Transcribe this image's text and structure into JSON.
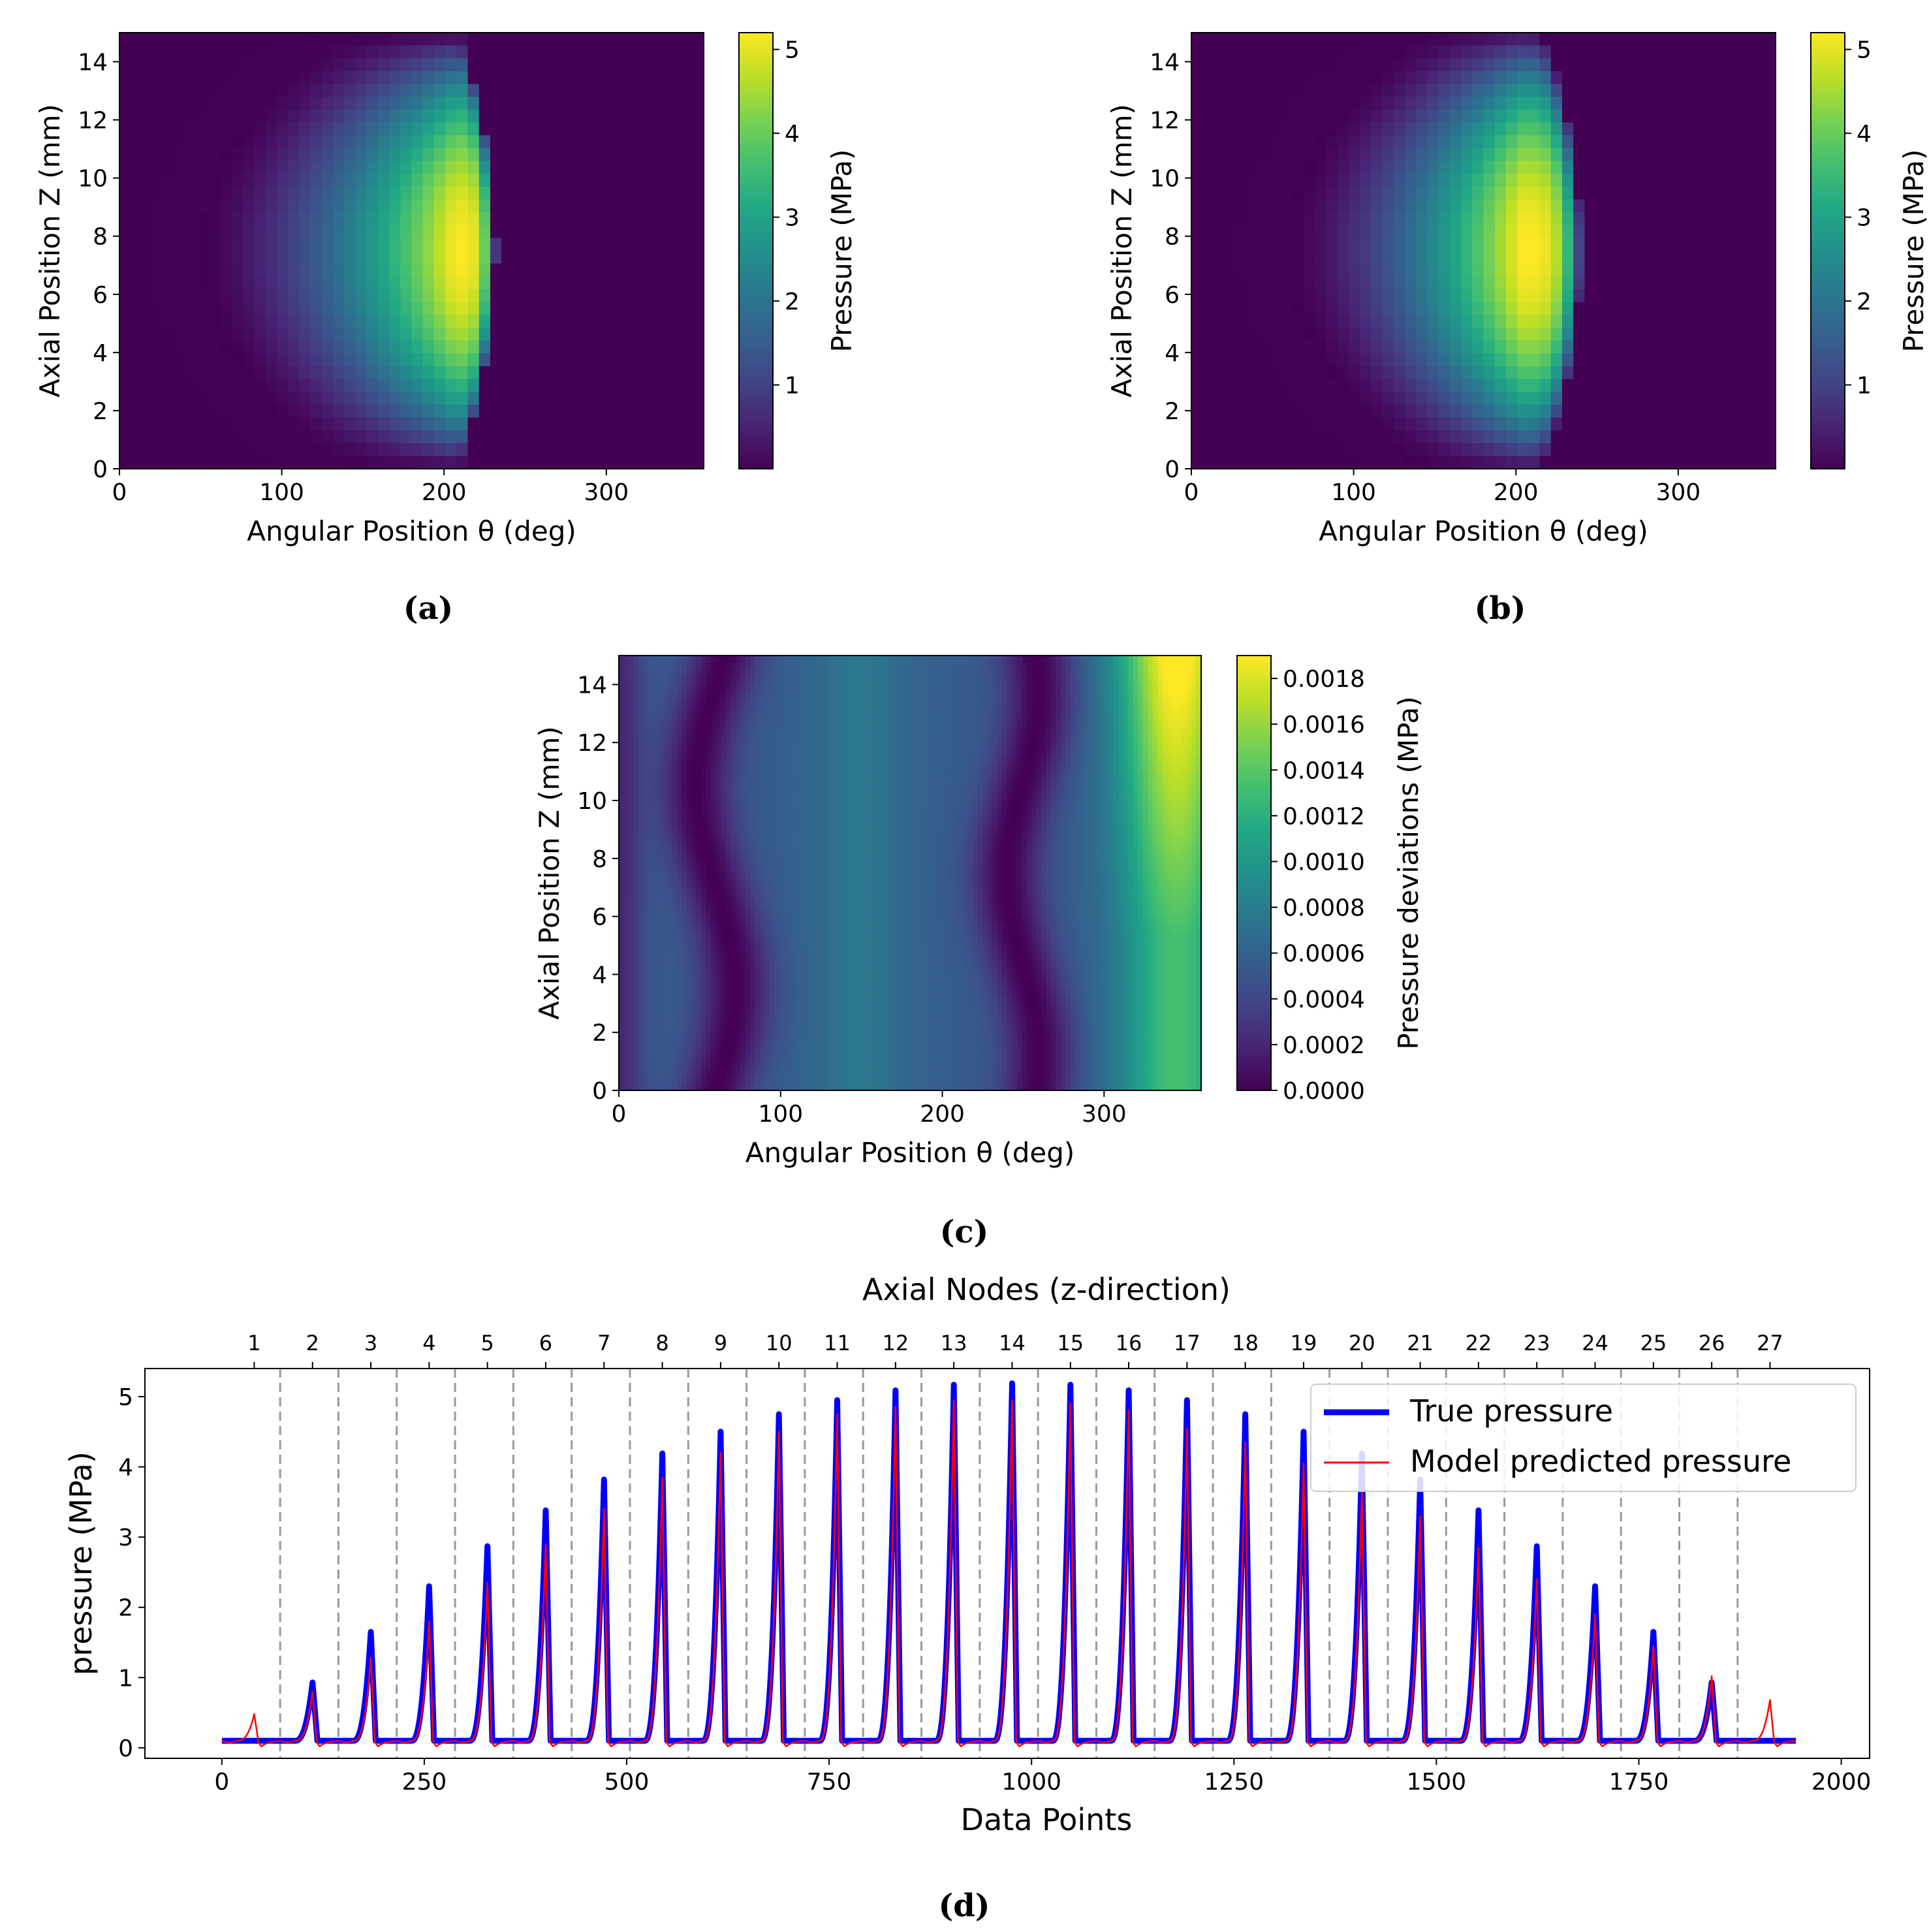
{
  "figure": {
    "captions": [
      "(a)",
      "(b)",
      "(c)",
      "(d)"
    ]
  },
  "colors": {
    "true_pressure": "#0000ff",
    "predicted_pressure": "#ff0000",
    "grid_dashed": "#999999",
    "colormap": "viridis"
  },
  "chart_data": [
    {
      "id": "a",
      "type": "heatmap",
      "title": "",
      "xlabel": "Angular Position θ (deg)",
      "ylabel": "Axial Position Z (mm)",
      "xlim": [
        0,
        360
      ],
      "ylim": [
        0,
        15
      ],
      "xticks": [
        "0",
        "100",
        "200",
        "300"
      ],
      "yticks": [
        "0",
        "2",
        "4",
        "6",
        "8",
        "10",
        "12",
        "14"
      ],
      "colorbar": {
        "label": "Pressure (MPa)",
        "range": [
          0,
          5.2
        ],
        "ticks": [
          "1",
          "2",
          "3",
          "4",
          "5"
        ]
      },
      "field": {
        "peak": 5.2,
        "peak_theta": 207,
        "peak_z": 7.5,
        "edge_theta": 232,
        "onset_theta": 50,
        "z_half_width": 7.5,
        "smooth": false
      }
    },
    {
      "id": "b",
      "type": "heatmap",
      "title": "",
      "xlabel": "Angular Position θ (deg)",
      "ylabel": "Axial Position Z (mm)",
      "xlim": [
        0,
        360
      ],
      "ylim": [
        0,
        15
      ],
      "xticks": [
        "0",
        "100",
        "200",
        "300"
      ],
      "yticks": [
        "0",
        "2",
        "4",
        "6",
        "8",
        "10",
        "12",
        "14"
      ],
      "colorbar": {
        "label": "Pressure (MPa)",
        "range": [
          0,
          5.2
        ],
        "ticks": [
          "1",
          "2",
          "3",
          "4",
          "5"
        ]
      },
      "field": {
        "peak": 5.2,
        "peak_theta": 203,
        "peak_z": 7.5,
        "edge_theta": 240,
        "onset_theta": 60,
        "z_half_width": 7.6,
        "smooth": false
      }
    },
    {
      "id": "c",
      "type": "heatmap",
      "title": "",
      "xlabel": "Angular Position θ (deg)",
      "ylabel": "Axial Position Z (mm)",
      "xlim": [
        0,
        360
      ],
      "ylim": [
        0,
        15
      ],
      "xticks": [
        "0",
        "100",
        "200",
        "300"
      ],
      "yticks": [
        "0",
        "2",
        "4",
        "6",
        "8",
        "10",
        "12",
        "14"
      ],
      "colorbar": {
        "label": "Pressure deviations (MPa)",
        "range": [
          0,
          0.0019
        ],
        "ticks": [
          "0.0000",
          "0.0002",
          "0.0004",
          "0.0006",
          "0.0008",
          "0.0010",
          "0.0012",
          "0.0014",
          "0.0016",
          "0.0018"
        ]
      },
      "field": {
        "smooth": true,
        "max": 0.0019,
        "low_band_1_theta": 60,
        "low_band_2_theta": 250,
        "high_region_theta": 345
      }
    },
    {
      "id": "d",
      "type": "line",
      "title": "",
      "xlabel": "Data Points",
      "ylabel": "pressure (MPa)",
      "top_axis_label": "Axial Nodes (z-direction)",
      "xlim": [
        -95,
        2035
      ],
      "ylim": [
        -0.15,
        5.4
      ],
      "xticks": [
        "0",
        "250",
        "500",
        "750",
        "1000",
        "1250",
        "1500",
        "1750",
        "2000"
      ],
      "xtick_values": [
        0,
        250,
        500,
        750,
        1000,
        1250,
        1500,
        1750,
        2000
      ],
      "yticks": [
        "0",
        "1",
        "2",
        "3",
        "4",
        "5"
      ],
      "ytick_values": [
        0,
        1,
        2,
        3,
        4,
        5
      ],
      "top_ticks": [
        "1",
        "2",
        "3",
        "4",
        "5",
        "6",
        "7",
        "8",
        "9",
        "10",
        "11",
        "12",
        "13",
        "14",
        "15",
        "16",
        "17",
        "18",
        "19",
        "20",
        "21",
        "22",
        "23",
        "24",
        "25",
        "26",
        "27"
      ],
      "node_period": 72,
      "node_count": 27,
      "total_points": 1944,
      "baseline": 0.1,
      "peak_position_in_node": 40,
      "legend": {
        "position": "top-right",
        "entries": [
          "True pressure",
          "Model predicted pressure"
        ]
      },
      "series": [
        {
          "name": "True pressure",
          "peaks": [
            0.1,
            0.93,
            1.65,
            2.3,
            2.87,
            3.38,
            3.82,
            4.19,
            4.5,
            4.75,
            4.95,
            5.09,
            5.17,
            5.19,
            5.17,
            5.09,
            4.95,
            4.75,
            4.5,
            4.19,
            3.82,
            3.38,
            2.87,
            2.3,
            1.65,
            0.93,
            0.1
          ]
        },
        {
          "name": "Model predicted pressure",
          "peaks": [
            0.48,
            0.8,
            1.28,
            1.8,
            2.35,
            2.9,
            3.4,
            3.85,
            4.2,
            4.5,
            4.75,
            4.85,
            4.95,
            4.95,
            4.9,
            4.8,
            4.55,
            4.35,
            4.05,
            3.65,
            3.3,
            2.85,
            2.4,
            1.9,
            1.45,
            1.02,
            0.68
          ]
        }
      ]
    }
  ]
}
